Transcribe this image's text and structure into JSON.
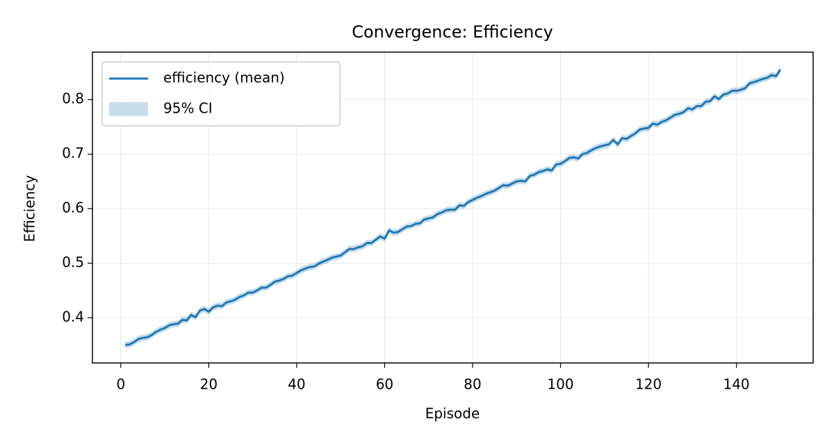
{
  "chart_data": {
    "type": "line",
    "title": "Convergence: Efficiency",
    "xlabel": "Episode",
    "ylabel": "Efficiency",
    "x": [
      1,
      2,
      3,
      4,
      5,
      6,
      7,
      8,
      9,
      10,
      11,
      12,
      13,
      14,
      15,
      16,
      17,
      18,
      19,
      20,
      21,
      22,
      23,
      24,
      25,
      26,
      27,
      28,
      29,
      30,
      31,
      32,
      33,
      34,
      35,
      36,
      37,
      38,
      39,
      40,
      41,
      42,
      43,
      44,
      45,
      46,
      47,
      48,
      49,
      50,
      51,
      52,
      53,
      54,
      55,
      56,
      57,
      58,
      59,
      60,
      61,
      62,
      63,
      64,
      65,
      66,
      67,
      68,
      69,
      70,
      71,
      72,
      73,
      74,
      75,
      76,
      77,
      78,
      79,
      80,
      81,
      82,
      83,
      84,
      85,
      86,
      87,
      88,
      89,
      90,
      91,
      92,
      93,
      94,
      95,
      96,
      97,
      98,
      99,
      100,
      101,
      102,
      103,
      104,
      105,
      106,
      107,
      108,
      109,
      110,
      111,
      112,
      113,
      114,
      115,
      116,
      117,
      118,
      119,
      120,
      121,
      122,
      123,
      124,
      125,
      126,
      127,
      128,
      129,
      130,
      131,
      132,
      133,
      134,
      135,
      136,
      137,
      138,
      139,
      140,
      141,
      142,
      143,
      144,
      145,
      146,
      147,
      148,
      149,
      150
    ],
    "series": [
      {
        "name": "efficiency (mean)",
        "color": "#1f77b4",
        "values": [
          0.35,
          0.351,
          0.355,
          0.361,
          0.363,
          0.364,
          0.368,
          0.374,
          0.378,
          0.381,
          0.386,
          0.388,
          0.389,
          0.396,
          0.395,
          0.405,
          0.401,
          0.413,
          0.416,
          0.411,
          0.419,
          0.422,
          0.421,
          0.428,
          0.43,
          0.433,
          0.438,
          0.441,
          0.446,
          0.446,
          0.45,
          0.455,
          0.455,
          0.46,
          0.466,
          0.468,
          0.471,
          0.476,
          0.477,
          0.482,
          0.487,
          0.49,
          0.493,
          0.494,
          0.499,
          0.503,
          0.506,
          0.51,
          0.512,
          0.514,
          0.52,
          0.526,
          0.526,
          0.529,
          0.531,
          0.537,
          0.537,
          0.543,
          0.549,
          0.545,
          0.56,
          0.556,
          0.557,
          0.562,
          0.567,
          0.568,
          0.572,
          0.573,
          0.58,
          0.582,
          0.584,
          0.59,
          0.593,
          0.597,
          0.598,
          0.598,
          0.606,
          0.605,
          0.612,
          0.616,
          0.62,
          0.623,
          0.627,
          0.63,
          0.633,
          0.638,
          0.643,
          0.642,
          0.646,
          0.65,
          0.651,
          0.65,
          0.66,
          0.662,
          0.667,
          0.669,
          0.672,
          0.67,
          0.681,
          0.682,
          0.687,
          0.693,
          0.694,
          0.692,
          0.7,
          0.702,
          0.707,
          0.711,
          0.714,
          0.716,
          0.718,
          0.726,
          0.718,
          0.729,
          0.728,
          0.733,
          0.738,
          0.745,
          0.747,
          0.748,
          0.756,
          0.754,
          0.759,
          0.762,
          0.767,
          0.772,
          0.774,
          0.777,
          0.784,
          0.782,
          0.788,
          0.788,
          0.796,
          0.797,
          0.806,
          0.801,
          0.809,
          0.811,
          0.816,
          0.816,
          0.818,
          0.821,
          0.83,
          0.832,
          0.835,
          0.838,
          0.84,
          0.845,
          0.843,
          0.855
        ]
      },
      {
        "name": "95% CI",
        "color": "#1f77b4",
        "alpha": 0.25,
        "band_halfwidth": 0.006
      }
    ],
    "xlim": [
      -6.45,
      157.45
    ],
    "xticks": [
      0,
      20,
      40,
      60,
      80,
      100,
      120,
      140
    ],
    "ylim": [
      0.317,
      0.887
    ],
    "yticks": [
      0.4,
      0.5,
      0.6,
      0.7,
      0.8
    ],
    "grid": true,
    "legend": "upper left"
  }
}
